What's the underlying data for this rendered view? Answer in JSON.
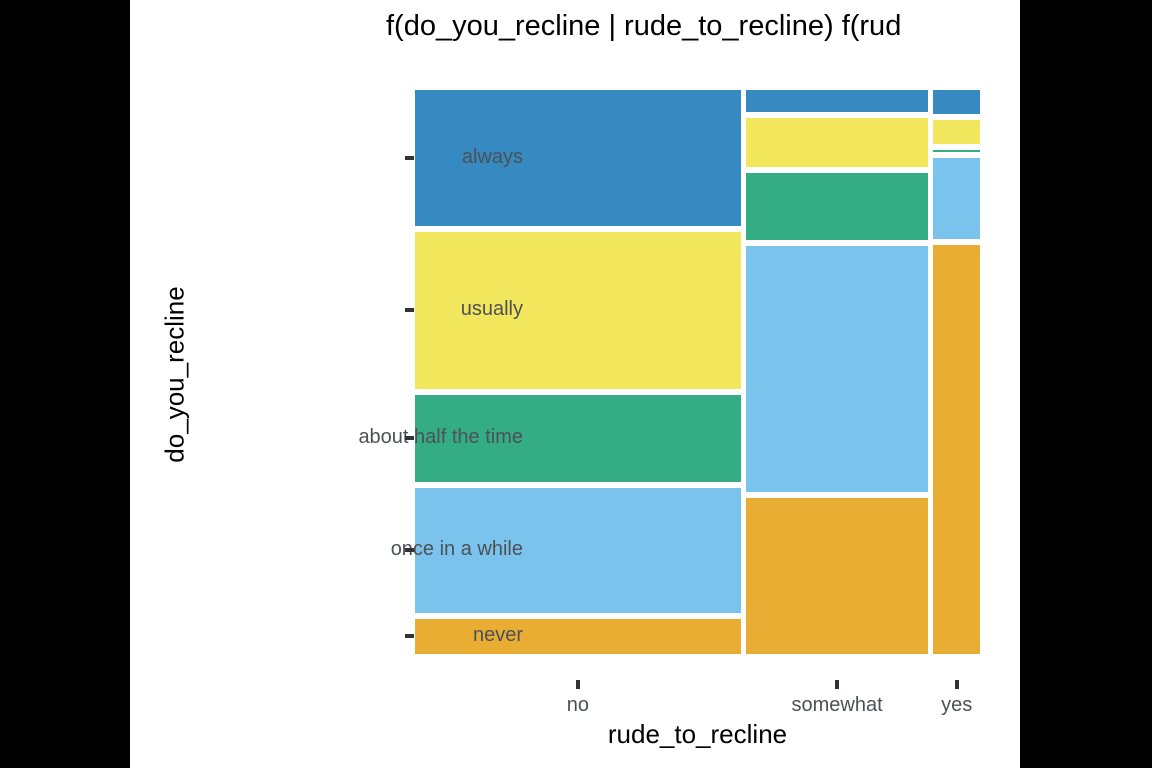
{
  "chart_data": {
    "type": "mosaic",
    "title": "f(do_you_recline | rude_to_recline) f(rud",
    "xlabel": "rude_to_recline",
    "ylabel": "do_you_recline",
    "x_categories": [
      "no",
      "somewhat",
      "yes"
    ],
    "y_categories": [
      "always",
      "usually",
      "about half the time",
      "once in a while",
      "never"
    ],
    "column_width_fractions": [
      0.587,
      0.329,
      0.084
    ],
    "conditional_fractions": {
      "no": [
        0.25,
        0.29,
        0.16,
        0.23,
        0.065
      ],
      "somewhat": [
        0.04,
        0.092,
        0.123,
        0.457,
        0.288
      ],
      "yes": [
        0.045,
        0.043,
        0.004,
        0.15,
        0.758
      ]
    },
    "colors": {
      "always": "#3689c1",
      "usually": "#f1e65c",
      "about half the time": "#34ad84",
      "once in a while": "#7ac3ec",
      "never": "#eaad33"
    },
    "background": "#ffffff",
    "frame_color": "#000000",
    "axis_text_color": "#4d5156",
    "grid": "off",
    "legend": "none"
  }
}
